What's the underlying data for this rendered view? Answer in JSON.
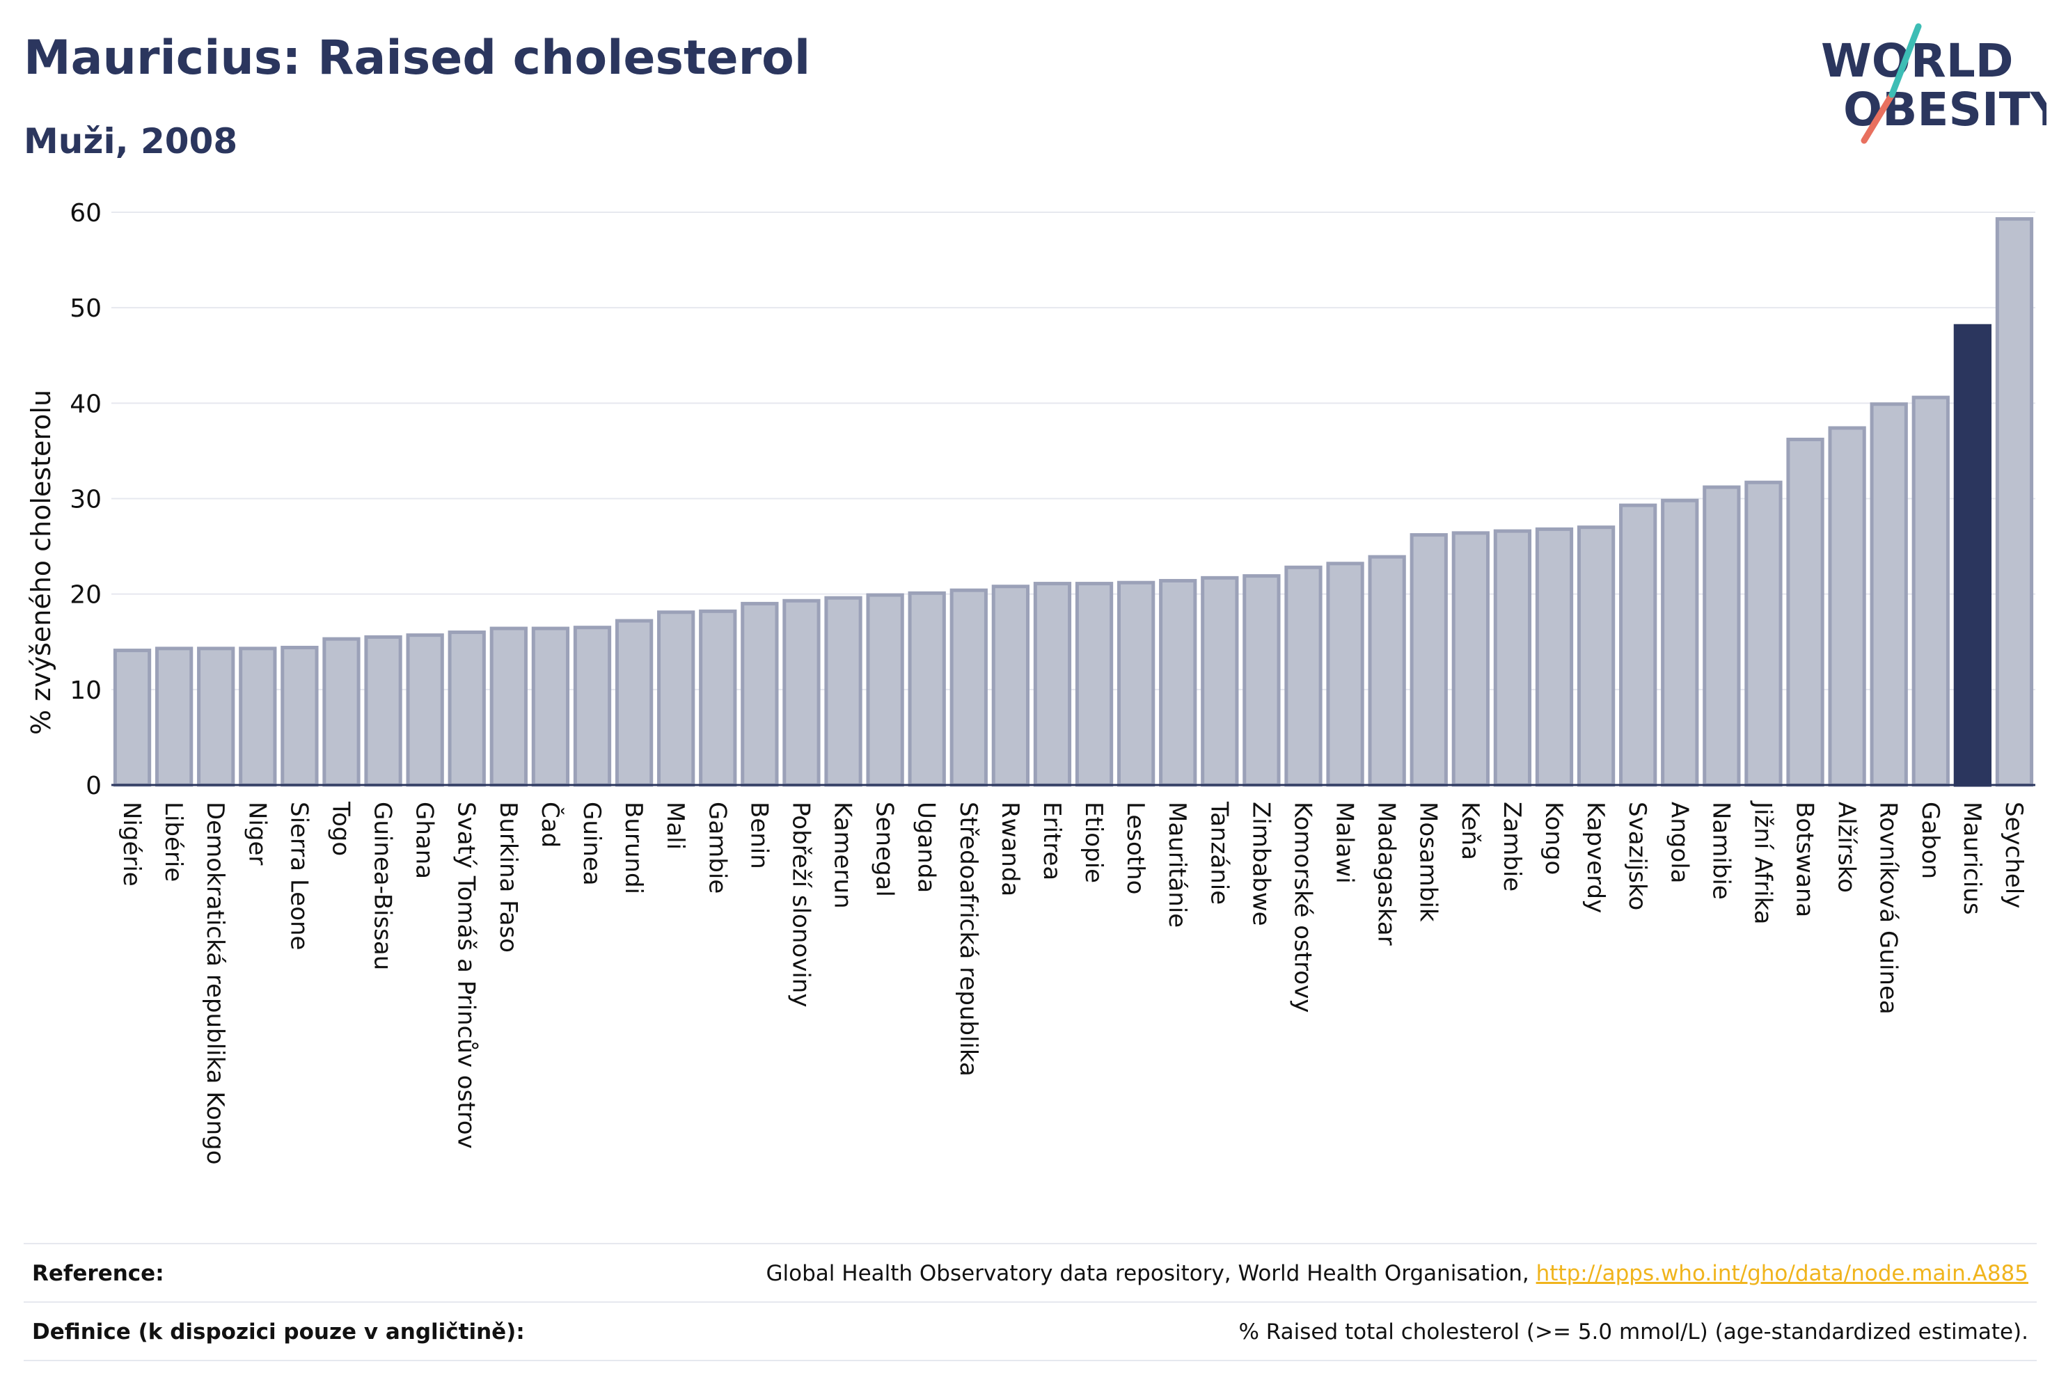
{
  "title": "Mauricius: Raised cholesterol",
  "subtitle": "Muži, 2008",
  "logo": {
    "line1": "WORLD",
    "line2": "OBESITY"
  },
  "chart_data": {
    "type": "bar",
    "ylabel": "% zvýšeného cholesterolu",
    "ylim": [
      0,
      60
    ],
    "yticks": [
      0,
      10,
      20,
      30,
      40,
      50,
      60
    ],
    "grid": true,
    "categories": [
      "Nigérie",
      "Libérie",
      "Demokratická republika Kongo",
      "Niger",
      "Sierra Leone",
      "Togo",
      "Guinea-Bissau",
      "Ghana",
      "Svatý Tomáš a Princův ostrov",
      "Burkina Faso",
      "Čad",
      "Guinea",
      "Burundi",
      "Mali",
      "Gambie",
      "Benin",
      "Pobřeží slonoviny",
      "Kamerun",
      "Senegal",
      "Uganda",
      "Středoafrická republika",
      "Rwanda",
      "Eritrea",
      "Etiopie",
      "Lesotho",
      "Mauritánie",
      "Tanzánie",
      "Zimbabwe",
      "Komorské ostrovy",
      "Malawi",
      "Madagaskar",
      "Mosambik",
      "Keňa",
      "Zambie",
      "Kongo",
      "Kapverdy",
      "Svazijsko",
      "Angola",
      "Namibie",
      "Jižní Afrika",
      "Botswana",
      "Alžírsko",
      "Rovníková Guinea",
      "Gabon",
      "Mauricius",
      "Seychely"
    ],
    "values": [
      14.1,
      14.3,
      14.3,
      14.3,
      14.4,
      15.3,
      15.5,
      15.7,
      16.0,
      16.4,
      16.4,
      16.5,
      17.2,
      18.1,
      18.2,
      19.0,
      19.3,
      19.6,
      19.9,
      20.1,
      20.4,
      20.8,
      21.1,
      21.1,
      21.2,
      21.4,
      21.7,
      21.9,
      22.8,
      23.2,
      23.9,
      26.2,
      26.4,
      26.6,
      26.8,
      27.0,
      29.3,
      29.8,
      31.2,
      31.7,
      36.2,
      37.4,
      39.9,
      40.6,
      48.1,
      59.3
    ],
    "highlight": "Mauricius",
    "colors": {
      "bar": "#bcc1cf",
      "bar_border": "#9ba1b8",
      "highlight": "#2b365e",
      "axis": "#2b365e",
      "grid": "#e6e8ef"
    }
  },
  "footer": {
    "reference_label": "Reference:",
    "reference_text": "Global Health Observatory data repository, World Health Organisation,",
    "reference_link": "http://apps.who.int/gho/data/node.main.A885",
    "definition_label": "Definice (k dispozici pouze v angličtině):",
    "definition_text": "% Raised total cholesterol (>= 5.0 mmol/L) (age-standardized estimate)."
  }
}
